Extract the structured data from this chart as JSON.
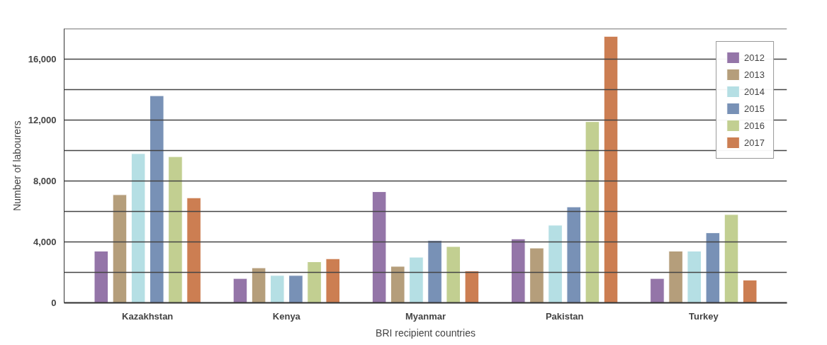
{
  "chart_data": {
    "type": "bar",
    "xlabel": "BRI recipient countries",
    "ylabel": "Number of labourers",
    "categories": [
      "Kazakhstan",
      "Kenya",
      "Myanmar",
      "Pakistan",
      "Turkey"
    ],
    "series": [
      {
        "name": "2012",
        "color": "#9475a8",
        "values": [
          3400,
          1600,
          7300,
          4200,
          1600
        ]
      },
      {
        "name": "2013",
        "color": "#b59e7b",
        "values": [
          7100,
          2300,
          2400,
          3600,
          3400
        ]
      },
      {
        "name": "2014",
        "color": "#b5dfe4",
        "values": [
          9800,
          1800,
          3000,
          5100,
          3400
        ]
      },
      {
        "name": "2015",
        "color": "#7891b6",
        "values": [
          13600,
          1800,
          4100,
          6300,
          4600
        ]
      },
      {
        "name": "2016",
        "color": "#c2cf91",
        "values": [
          9600,
          2700,
          3700,
          11900,
          5800
        ]
      },
      {
        "name": "2017",
        "color": "#cc7e52",
        "values": [
          6900,
          2900,
          2100,
          17500,
          1500
        ]
      }
    ],
    "ylim": [
      0,
      18000
    ],
    "yticks": [
      0,
      {
        "value": 2000,
        "label": null
      },
      {
        "value": 4000,
        "label": "4,000"
      },
      {
        "value": 6000,
        "label": null
      },
      {
        "value": 8000,
        "label": "8,000"
      },
      {
        "value": 10000,
        "label": null
      },
      {
        "value": 12000,
        "label": "12,000"
      },
      {
        "value": 14000,
        "label": null
      },
      {
        "value": 16000,
        "label": "16,000"
      },
      {
        "value": 18000,
        "label": null
      }
    ],
    "grid": "y",
    "legend": "top right"
  }
}
